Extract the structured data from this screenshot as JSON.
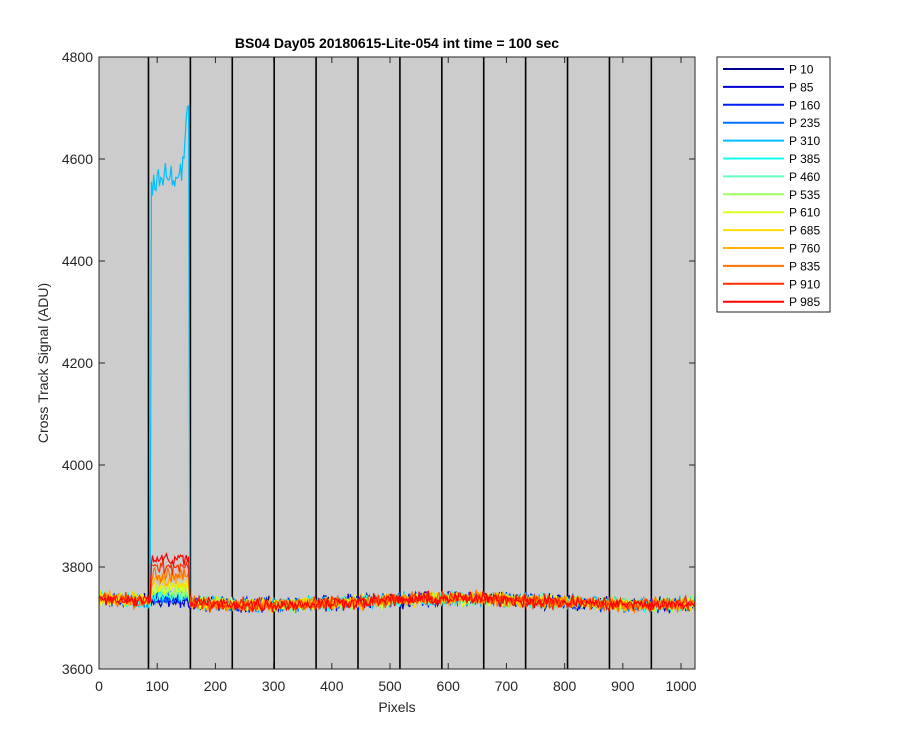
{
  "chart_data": {
    "type": "line",
    "title": "BS04 Day05 20180615-Lite-054 int time = 100 sec",
    "xlabel": "Pixels",
    "ylabel": "Cross Track Signal (ADU)",
    "xlim": [
      0,
      1024
    ],
    "ylim": [
      3600,
      4800
    ],
    "xticks": [
      0,
      100,
      200,
      300,
      400,
      500,
      600,
      700,
      800,
      900,
      1000
    ],
    "yticks": [
      3600,
      3800,
      4000,
      4200,
      4400,
      4600,
      4800
    ],
    "xtick_labels": [
      "0",
      "100",
      "200",
      "300",
      "400",
      "500",
      "600",
      "700",
      "800",
      "900",
      "1000"
    ],
    "ytick_labels": [
      "3600",
      "3800",
      "4000",
      "4200",
      "4400",
      "4600",
      "4800"
    ],
    "grid": false,
    "background_color": "#cccccc",
    "segment_dividers_x": [
      85,
      157,
      229,
      301,
      373,
      445,
      517,
      589,
      661,
      733,
      805,
      877,
      949
    ],
    "legend_position": "outside-right",
    "baseline": 3728,
    "series": [
      {
        "name": "P 10",
        "color": "#00008f",
        "feature_x": [
          90,
          155
        ],
        "feature_level": 3735
      },
      {
        "name": "P 85",
        "color": "#0000d5",
        "feature_x": [
          90,
          155
        ],
        "feature_level": 3735
      },
      {
        "name": "P 160",
        "color": "#0020ff",
        "feature_x": [
          90,
          155
        ],
        "feature_level": 3738
      },
      {
        "name": "P 235",
        "color": "#0070ff",
        "feature_x": [
          90,
          155
        ],
        "feature_level": 3740
      },
      {
        "name": "P 310",
        "color": "#00bfff",
        "feature_x": [
          90,
          155
        ],
        "feature_level": 4560,
        "feature_peak": 4720
      },
      {
        "name": "P 385",
        "color": "#10ffef",
        "feature_x": [
          90,
          155
        ],
        "feature_level": 3745
      },
      {
        "name": "P 460",
        "color": "#60ffbf",
        "feature_x": [
          90,
          155
        ],
        "feature_level": 3748
      },
      {
        "name": "P 535",
        "color": "#9fff60",
        "feature_x": [
          90,
          155
        ],
        "feature_level": 3752
      },
      {
        "name": "P 610",
        "color": "#dfff20",
        "feature_x": [
          90,
          155
        ],
        "feature_level": 3758
      },
      {
        "name": "P 685",
        "color": "#ffdf00",
        "feature_x": [
          90,
          155
        ],
        "feature_level": 3765
      },
      {
        "name": "P 760",
        "color": "#ffb000",
        "feature_x": [
          90,
          155
        ],
        "feature_level": 3775
      },
      {
        "name": "P 835",
        "color": "#ff7000",
        "feature_x": [
          90,
          155
        ],
        "feature_level": 3785
      },
      {
        "name": "P 910",
        "color": "#ff3000",
        "feature_x": [
          90,
          155
        ],
        "feature_level": 3800
      },
      {
        "name": "P 985",
        "color": "#ff0000",
        "feature_x": [
          90,
          155
        ],
        "feature_level": 3815
      }
    ]
  }
}
